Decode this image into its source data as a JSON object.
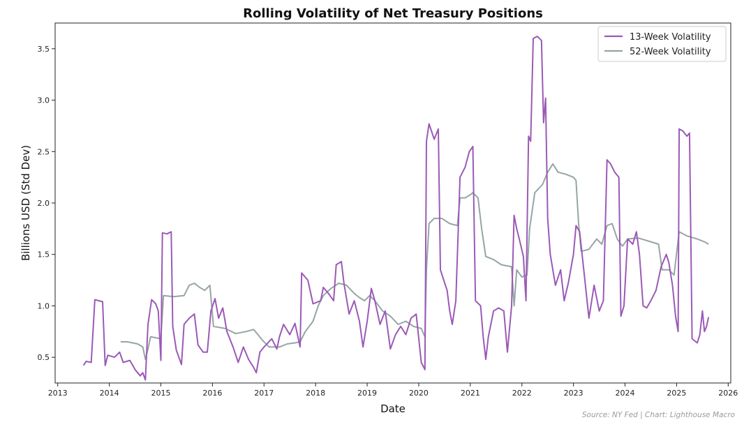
{
  "chart_data": {
    "type": "line",
    "title": "Rolling Volatility of Net Treasury Positions",
    "xlabel": "Date",
    "ylabel": "Billions USD (Std Dev)",
    "xlim": [
      2012.95,
      2026.05
    ],
    "ylim": [
      0.25,
      3.75
    ],
    "x_ticks": [
      "2013",
      "2014",
      "2015",
      "2016",
      "2017",
      "2018",
      "2019",
      "2020",
      "2021",
      "2022",
      "2023",
      "2024",
      "2025",
      "2026"
    ],
    "y_ticks": [
      "0.5",
      "1.0",
      "1.5",
      "2.0",
      "2.5",
      "3.0",
      "3.5"
    ],
    "grid": false,
    "legend_position": "top-right",
    "source_note": "Source: NY Fed | Chart: Lighthouse Macro",
    "series": [
      {
        "name": "13-Week Volatility",
        "color": "#9b59b6",
        "points": [
          [
            2013.5,
            0.42
          ],
          [
            2013.55,
            0.46
          ],
          [
            2013.65,
            0.45
          ],
          [
            2013.72,
            1.06
          ],
          [
            2013.8,
            1.05
          ],
          [
            2013.87,
            1.04
          ],
          [
            2013.92,
            0.42
          ],
          [
            2013.97,
            0.52
          ],
          [
            2014.1,
            0.5
          ],
          [
            2014.2,
            0.55
          ],
          [
            2014.27,
            0.45
          ],
          [
            2014.4,
            0.47
          ],
          [
            2014.5,
            0.38
          ],
          [
            2014.6,
            0.32
          ],
          [
            2014.65,
            0.35
          ],
          [
            2014.7,
            0.28
          ],
          [
            2014.75,
            0.82
          ],
          [
            2014.82,
            1.06
          ],
          [
            2014.9,
            1.02
          ],
          [
            2014.95,
            0.95
          ],
          [
            2015.0,
            0.47
          ],
          [
            2015.03,
            1.71
          ],
          [
            2015.12,
            1.7
          ],
          [
            2015.2,
            1.72
          ],
          [
            2015.23,
            0.8
          ],
          [
            2015.3,
            0.57
          ],
          [
            2015.4,
            0.43
          ],
          [
            2015.45,
            0.82
          ],
          [
            2015.55,
            0.88
          ],
          [
            2015.65,
            0.92
          ],
          [
            2015.72,
            0.62
          ],
          [
            2015.82,
            0.55
          ],
          [
            2015.9,
            0.55
          ],
          [
            2015.97,
            0.95
          ],
          [
            2016.05,
            1.07
          ],
          [
            2016.12,
            0.88
          ],
          [
            2016.2,
            0.98
          ],
          [
            2016.28,
            0.75
          ],
          [
            2016.4,
            0.6
          ],
          [
            2016.5,
            0.45
          ],
          [
            2016.6,
            0.6
          ],
          [
            2016.7,
            0.48
          ],
          [
            2016.8,
            0.4
          ],
          [
            2016.85,
            0.35
          ],
          [
            2016.92,
            0.55
          ],
          [
            2017.0,
            0.6
          ],
          [
            2017.15,
            0.68
          ],
          [
            2017.25,
            0.58
          ],
          [
            2017.3,
            0.7
          ],
          [
            2017.38,
            0.82
          ],
          [
            2017.5,
            0.72
          ],
          [
            2017.6,
            0.83
          ],
          [
            2017.7,
            0.6
          ],
          [
            2017.73,
            1.32
          ],
          [
            2017.85,
            1.25
          ],
          [
            2017.95,
            1.02
          ],
          [
            2018.1,
            1.05
          ],
          [
            2018.15,
            1.18
          ],
          [
            2018.25,
            1.12
          ],
          [
            2018.35,
            1.05
          ],
          [
            2018.4,
            1.4
          ],
          [
            2018.5,
            1.43
          ],
          [
            2018.55,
            1.22
          ],
          [
            2018.65,
            0.92
          ],
          [
            2018.75,
            1.05
          ],
          [
            2018.85,
            0.85
          ],
          [
            2018.92,
            0.6
          ],
          [
            2019.0,
            0.85
          ],
          [
            2019.08,
            1.17
          ],
          [
            2019.15,
            1.05
          ],
          [
            2019.25,
            0.82
          ],
          [
            2019.35,
            0.95
          ],
          [
            2019.45,
            0.58
          ],
          [
            2019.55,
            0.72
          ],
          [
            2019.65,
            0.8
          ],
          [
            2019.75,
            0.72
          ],
          [
            2019.85,
            0.88
          ],
          [
            2019.95,
            0.92
          ],
          [
            2020.05,
            0.45
          ],
          [
            2020.12,
            0.38
          ],
          [
            2020.15,
            2.6
          ],
          [
            2020.2,
            2.77
          ],
          [
            2020.3,
            2.62
          ],
          [
            2020.38,
            2.72
          ],
          [
            2020.42,
            1.35
          ],
          [
            2020.55,
            1.15
          ],
          [
            2020.6,
            0.95
          ],
          [
            2020.65,
            0.82
          ],
          [
            2020.72,
            1.05
          ],
          [
            2020.78,
            1.95
          ],
          [
            2020.8,
            2.25
          ],
          [
            2020.9,
            2.35
          ],
          [
            2020.98,
            2.5
          ],
          [
            2021.05,
            2.55
          ],
          [
            2021.1,
            1.05
          ],
          [
            2021.2,
            1.0
          ],
          [
            2021.25,
            0.7
          ],
          [
            2021.3,
            0.48
          ],
          [
            2021.35,
            0.7
          ],
          [
            2021.45,
            0.95
          ],
          [
            2021.55,
            0.98
          ],
          [
            2021.65,
            0.95
          ],
          [
            2021.72,
            0.55
          ],
          [
            2021.8,
            1.0
          ],
          [
            2021.85,
            1.88
          ],
          [
            2021.9,
            1.75
          ],
          [
            2021.95,
            1.65
          ],
          [
            2022.03,
            1.48
          ],
          [
            2022.08,
            1.05
          ],
          [
            2022.13,
            2.65
          ],
          [
            2022.17,
            2.6
          ],
          [
            2022.22,
            3.6
          ],
          [
            2022.3,
            3.62
          ],
          [
            2022.38,
            3.58
          ],
          [
            2022.42,
            2.78
          ],
          [
            2022.46,
            3.02
          ],
          [
            2022.5,
            1.85
          ],
          [
            2022.55,
            1.5
          ],
          [
            2022.65,
            1.2
          ],
          [
            2022.75,
            1.35
          ],
          [
            2022.82,
            1.05
          ],
          [
            2022.9,
            1.22
          ],
          [
            2023.0,
            1.5
          ],
          [
            2023.05,
            1.78
          ],
          [
            2023.12,
            1.72
          ],
          [
            2023.2,
            1.35
          ],
          [
            2023.3,
            0.88
          ],
          [
            2023.4,
            1.2
          ],
          [
            2023.5,
            0.95
          ],
          [
            2023.58,
            1.05
          ],
          [
            2023.65,
            2.42
          ],
          [
            2023.72,
            2.38
          ],
          [
            2023.8,
            2.3
          ],
          [
            2023.88,
            2.25
          ],
          [
            2023.92,
            0.9
          ],
          [
            2023.98,
            1.0
          ],
          [
            2024.05,
            1.65
          ],
          [
            2024.15,
            1.6
          ],
          [
            2024.22,
            1.72
          ],
          [
            2024.28,
            1.5
          ],
          [
            2024.35,
            1.0
          ],
          [
            2024.42,
            0.98
          ],
          [
            2024.5,
            1.05
          ],
          [
            2024.6,
            1.15
          ],
          [
            2024.7,
            1.38
          ],
          [
            2024.8,
            1.5
          ],
          [
            2024.85,
            1.42
          ],
          [
            2024.92,
            1.2
          ],
          [
            2024.98,
            0.9
          ],
          [
            2025.03,
            0.75
          ],
          [
            2025.05,
            2.72
          ],
          [
            2025.12,
            2.7
          ],
          [
            2025.2,
            2.65
          ],
          [
            2025.25,
            2.68
          ],
          [
            2025.3,
            0.68
          ],
          [
            2025.4,
            0.64
          ],
          [
            2025.45,
            0.72
          ],
          [
            2025.5,
            0.95
          ],
          [
            2025.54,
            0.75
          ],
          [
            2025.58,
            0.8
          ],
          [
            2025.62,
            0.89
          ]
        ]
      },
      {
        "name": "52-Week Volatility",
        "color": "#95a5a6",
        "points": [
          [
            2014.22,
            0.65
          ],
          [
            2014.35,
            0.65
          ],
          [
            2014.45,
            0.64
          ],
          [
            2014.55,
            0.63
          ],
          [
            2014.65,
            0.6
          ],
          [
            2014.7,
            0.48
          ],
          [
            2014.75,
            0.58
          ],
          [
            2014.8,
            0.7
          ],
          [
            2014.9,
            0.69
          ],
          [
            2015.0,
            0.68
          ],
          [
            2015.05,
            1.1
          ],
          [
            2015.25,
            1.09
          ],
          [
            2015.45,
            1.1
          ],
          [
            2015.55,
            1.2
          ],
          [
            2015.65,
            1.22
          ],
          [
            2015.75,
            1.18
          ],
          [
            2015.85,
            1.15
          ],
          [
            2015.95,
            1.2
          ],
          [
            2016.02,
            0.8
          ],
          [
            2016.25,
            0.78
          ],
          [
            2016.45,
            0.73
          ],
          [
            2016.65,
            0.75
          ],
          [
            2016.8,
            0.77
          ],
          [
            2016.98,
            0.66
          ],
          [
            2017.1,
            0.6
          ],
          [
            2017.3,
            0.6
          ],
          [
            2017.45,
            0.63
          ],
          [
            2017.6,
            0.64
          ],
          [
            2017.7,
            0.65
          ],
          [
            2017.8,
            0.75
          ],
          [
            2017.95,
            0.85
          ],
          [
            2018.05,
            1.0
          ],
          [
            2018.15,
            1.1
          ],
          [
            2018.3,
            1.17
          ],
          [
            2018.45,
            1.22
          ],
          [
            2018.6,
            1.2
          ],
          [
            2018.75,
            1.12
          ],
          [
            2018.85,
            1.08
          ],
          [
            2018.95,
            1.05
          ],
          [
            2019.05,
            1.1
          ],
          [
            2019.15,
            1.05
          ],
          [
            2019.3,
            0.95
          ],
          [
            2019.45,
            0.9
          ],
          [
            2019.6,
            0.82
          ],
          [
            2019.75,
            0.85
          ],
          [
            2019.9,
            0.8
          ],
          [
            2020.05,
            0.78
          ],
          [
            2020.12,
            0.7
          ],
          [
            2020.15,
            1.35
          ],
          [
            2020.2,
            1.8
          ],
          [
            2020.3,
            1.85
          ],
          [
            2020.45,
            1.85
          ],
          [
            2020.6,
            1.8
          ],
          [
            2020.75,
            1.78
          ],
          [
            2020.8,
            2.05
          ],
          [
            2020.9,
            2.05
          ],
          [
            2021.0,
            2.08
          ],
          [
            2021.05,
            2.1
          ],
          [
            2021.15,
            2.05
          ],
          [
            2021.22,
            1.75
          ],
          [
            2021.3,
            1.48
          ],
          [
            2021.45,
            1.45
          ],
          [
            2021.6,
            1.4
          ],
          [
            2021.8,
            1.38
          ],
          [
            2021.85,
            1.0
          ],
          [
            2021.9,
            1.35
          ],
          [
            2022.0,
            1.28
          ],
          [
            2022.1,
            1.3
          ],
          [
            2022.15,
            1.75
          ],
          [
            2022.25,
            2.1
          ],
          [
            2022.4,
            2.18
          ],
          [
            2022.5,
            2.3
          ],
          [
            2022.6,
            2.38
          ],
          [
            2022.7,
            2.3
          ],
          [
            2022.85,
            2.28
          ],
          [
            2023.0,
            2.25
          ],
          [
            2023.05,
            2.22
          ],
          [
            2023.1,
            1.8
          ],
          [
            2023.15,
            1.53
          ],
          [
            2023.3,
            1.55
          ],
          [
            2023.45,
            1.65
          ],
          [
            2023.55,
            1.6
          ],
          [
            2023.65,
            1.78
          ],
          [
            2023.75,
            1.8
          ],
          [
            2023.85,
            1.65
          ],
          [
            2023.95,
            1.58
          ],
          [
            2024.05,
            1.65
          ],
          [
            2024.25,
            1.66
          ],
          [
            2024.45,
            1.63
          ],
          [
            2024.65,
            1.6
          ],
          [
            2024.72,
            1.35
          ],
          [
            2024.85,
            1.35
          ],
          [
            2024.95,
            1.3
          ],
          [
            2025.05,
            1.72
          ],
          [
            2025.2,
            1.68
          ],
          [
            2025.4,
            1.65
          ],
          [
            2025.55,
            1.62
          ],
          [
            2025.62,
            1.6
          ]
        ]
      }
    ]
  }
}
